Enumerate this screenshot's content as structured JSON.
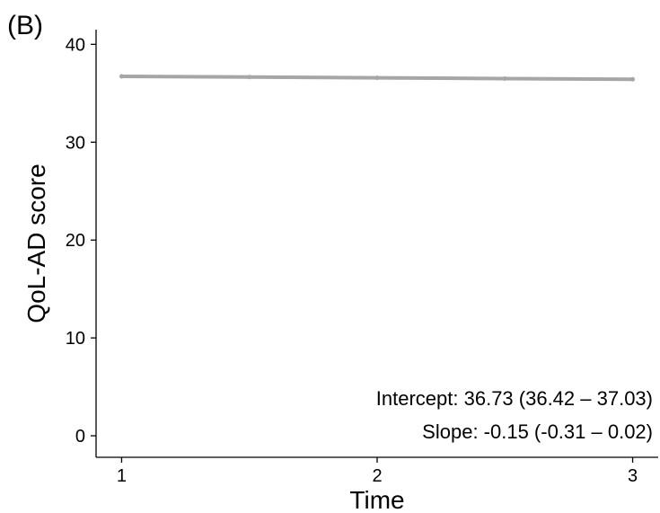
{
  "chart_data": {
    "type": "line",
    "panel_label": "(B)",
    "xlabel": "Time",
    "ylabel": "QoL-AD score",
    "x": [
      1,
      1.5,
      2,
      2.5,
      3
    ],
    "xticks": [
      "1",
      "2",
      "3"
    ],
    "yticks": [
      "0",
      "10",
      "20",
      "30",
      "40"
    ],
    "xlim": [
      0.9,
      3.1
    ],
    "ylim": [
      -2.2,
      41.5
    ],
    "grid": false,
    "series": [
      {
        "values": [
          36.73,
          36.66,
          36.58,
          36.5,
          36.43
        ],
        "color": "#a6a6a6"
      }
    ],
    "annotations": [
      "Intercept: 36.73 (36.42 – 37.03)",
      "Slope: -0.15 (-0.31 – 0.02)"
    ]
  }
}
